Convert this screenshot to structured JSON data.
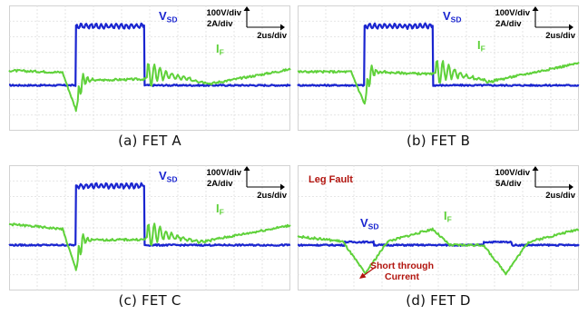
{
  "chart_data": [
    {
      "type": "line",
      "caption": "(a)  FET  A",
      "vsd_label": "V",
      "vsd_sub": "SD",
      "if_label": "I",
      "if_sub": "F",
      "scale_v": "100V/div",
      "scale_i": "2A/div",
      "scale_t": "2us/div",
      "grid": true,
      "series": [
        {
          "name": "VSD",
          "color": "#1a25d0",
          "x": [
            0,
            11.8,
            11.9,
            24,
            24.1,
            50
          ],
          "y": [
            0,
            0,
            9.6,
            9.6,
            0,
            0
          ]
        },
        {
          "name": "IF",
          "color": "#5fd13a",
          "x": [
            0,
            9.5,
            11.9,
            13,
            24,
            26,
            36,
            50
          ],
          "y": [
            2.4,
            2.1,
            -4.0,
            0.8,
            1.0,
            2.0,
            0.3,
            2.6
          ]
        }
      ]
    },
    {
      "type": "line",
      "caption": "(b)  FET  B",
      "vsd_label": "V",
      "vsd_sub": "SD",
      "if_label": "I",
      "if_sub": "F",
      "scale_v": "100V/div",
      "scale_i": "2A/div",
      "scale_t": "2us/div",
      "grid": true,
      "series": [
        {
          "name": "VSD",
          "color": "#1a25d0",
          "x": [
            0,
            11.8,
            11.9,
            24,
            24.1,
            50
          ],
          "y": [
            0,
            0,
            9.6,
            9.6,
            0,
            0
          ]
        },
        {
          "name": "IF",
          "color": "#5fd13a",
          "x": [
            0,
            9.5,
            11.9,
            13,
            24,
            26,
            34,
            50
          ],
          "y": [
            2.2,
            2.2,
            -3.0,
            2.2,
            1.8,
            2.3,
            0.6,
            3.6
          ]
        }
      ]
    },
    {
      "type": "line",
      "caption": "(c)  FET  C",
      "vsd_label": "V",
      "vsd_sub": "SD",
      "if_label": "I",
      "if_sub": "F",
      "scale_v": "100V/div",
      "scale_i": "2A/div",
      "scale_t": "2us/div",
      "grid": true,
      "series": [
        {
          "name": "VSD",
          "color": "#1a25d0",
          "x": [
            0,
            11.8,
            11.9,
            24,
            24.1,
            50
          ],
          "y": [
            0,
            0,
            9.6,
            9.6,
            0,
            0
          ]
        },
        {
          "name": "IF",
          "color": "#5fd13a",
          "x": [
            0,
            9.5,
            11.9,
            13,
            24,
            26,
            34,
            50
          ],
          "y": [
            3.4,
            2.6,
            -4.0,
            0.8,
            0.9,
            2.0,
            0.5,
            3.2
          ]
        }
      ]
    },
    {
      "type": "line",
      "caption": "(d)  FET  D",
      "vsd_label": "V",
      "vsd_sub": "SD",
      "if_label": "I",
      "if_sub": "F",
      "scale_v": "100V/div",
      "scale_i": "5A/div",
      "scale_t": "2us/div",
      "title": "Leg Fault",
      "annotation": [
        "Short through",
        "Current"
      ],
      "grid": true,
      "series": [
        {
          "name": "VSD",
          "color": "#1a25d0",
          "x": [
            0,
            8.3,
            8.4,
            13.5,
            13.6,
            33,
            33.1,
            38,
            38.1,
            50
          ],
          "y": [
            0,
            0,
            0.5,
            0.5,
            0,
            0,
            0.5,
            0.5,
            0,
            0
          ]
        },
        {
          "name": "IF",
          "color": "#5fd13a",
          "x": [
            0,
            8,
            12,
            16,
            24,
            27,
            33,
            37,
            41,
            50
          ],
          "y": [
            1.4,
            0.6,
            -4.6,
            0.6,
            2.6,
            0,
            0,
            -4.6,
            0.5,
            2.6
          ]
        }
      ]
    }
  ]
}
